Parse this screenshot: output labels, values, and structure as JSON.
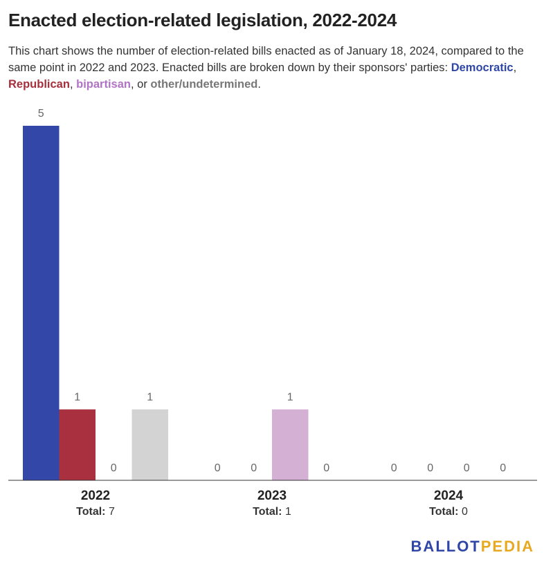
{
  "header": {
    "title": "Enacted election-related legislation, 2022-2024",
    "subtitle_intro": "This chart shows the number of election-related bills enacted as of January 18, 2024, compared to the same point in 2022 and 2023. Enacted bills are broken down by their sponsors' parties: ",
    "legend_democratic": "Democratic",
    "sep1": ", ",
    "legend_republican": "Republican",
    "sep2": ", ",
    "legend_bipartisan": "bipartisan",
    "sep3": ", or ",
    "legend_other": "other/undetermined",
    "end": "."
  },
  "chart_data": {
    "type": "bar",
    "title": "Enacted election-related legislation, 2022-2024",
    "categories": [
      "2022",
      "2023",
      "2024"
    ],
    "total_label": "Total:",
    "totals": [
      7,
      1,
      0
    ],
    "series": [
      {
        "name": "Democratic",
        "color": "#3247a8",
        "values": [
          5,
          0,
          0
        ]
      },
      {
        "name": "Republican",
        "color": "#a8303f",
        "values": [
          1,
          0,
          0
        ]
      },
      {
        "name": "bipartisan",
        "color": "#d4b0d4",
        "values": [
          0,
          1,
          0
        ]
      },
      {
        "name": "other/undetermined",
        "color": "#d3d3d3",
        "values": [
          1,
          0,
          0
        ]
      }
    ],
    "ylim": [
      0,
      5
    ],
    "grid": false,
    "legend": "in subtitle"
  },
  "branding": {
    "logo_part1": "BALLOT",
    "logo_part2": "PEDIA"
  }
}
